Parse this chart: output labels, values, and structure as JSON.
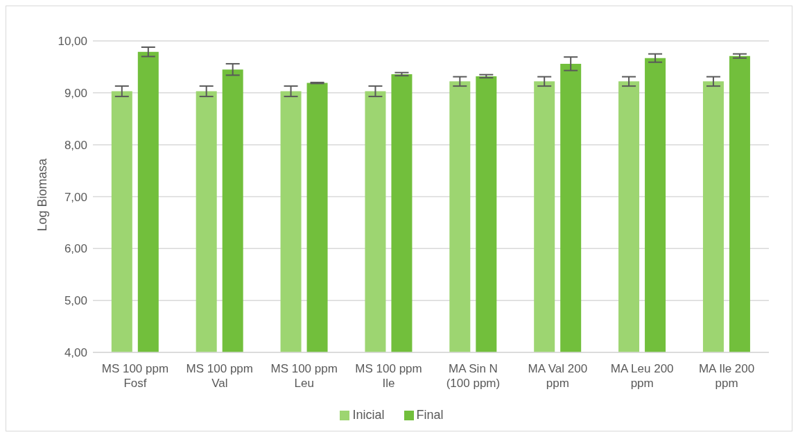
{
  "chart_data": {
    "type": "bar",
    "ylabel": "Log Biomasa",
    "categories": [
      "MS 100 ppm Fosf",
      "MS 100 ppm Val",
      "MS 100 ppm Leu",
      "MS 100 ppm Ile",
      "MA Sin N (100 ppm)",
      "MA Val 200 ppm",
      "MA Leu 200 ppm",
      "MA Ile 200 ppm"
    ],
    "series": [
      {
        "name": "Inicial",
        "color": "#9dd571",
        "values": [
          9.03,
          9.03,
          9.03,
          9.03,
          9.22,
          9.22,
          9.22,
          9.22
        ],
        "errors": [
          0.1,
          0.1,
          0.1,
          0.1,
          0.09,
          0.09,
          0.09,
          0.09
        ]
      },
      {
        "name": "Final",
        "color": "#72bf3c",
        "values": [
          9.79,
          9.45,
          9.19,
          9.36,
          9.32,
          9.56,
          9.67,
          9.71
        ],
        "errors": [
          0.09,
          0.11,
          0.01,
          0.03,
          0.03,
          0.13,
          0.08,
          0.04
        ]
      }
    ],
    "ylim": [
      4,
      10
    ],
    "yticks": [
      {
        "value": 4,
        "label": "4,00"
      },
      {
        "value": 5,
        "label": "5,00"
      },
      {
        "value": 6,
        "label": "6,00"
      },
      {
        "value": 7,
        "label": "7,00"
      },
      {
        "value": 8,
        "label": "8,00"
      },
      {
        "value": 9,
        "label": "9,00"
      },
      {
        "value": 10,
        "label": "10,00"
      }
    ],
    "grid": "y",
    "legend": "bottom"
  }
}
